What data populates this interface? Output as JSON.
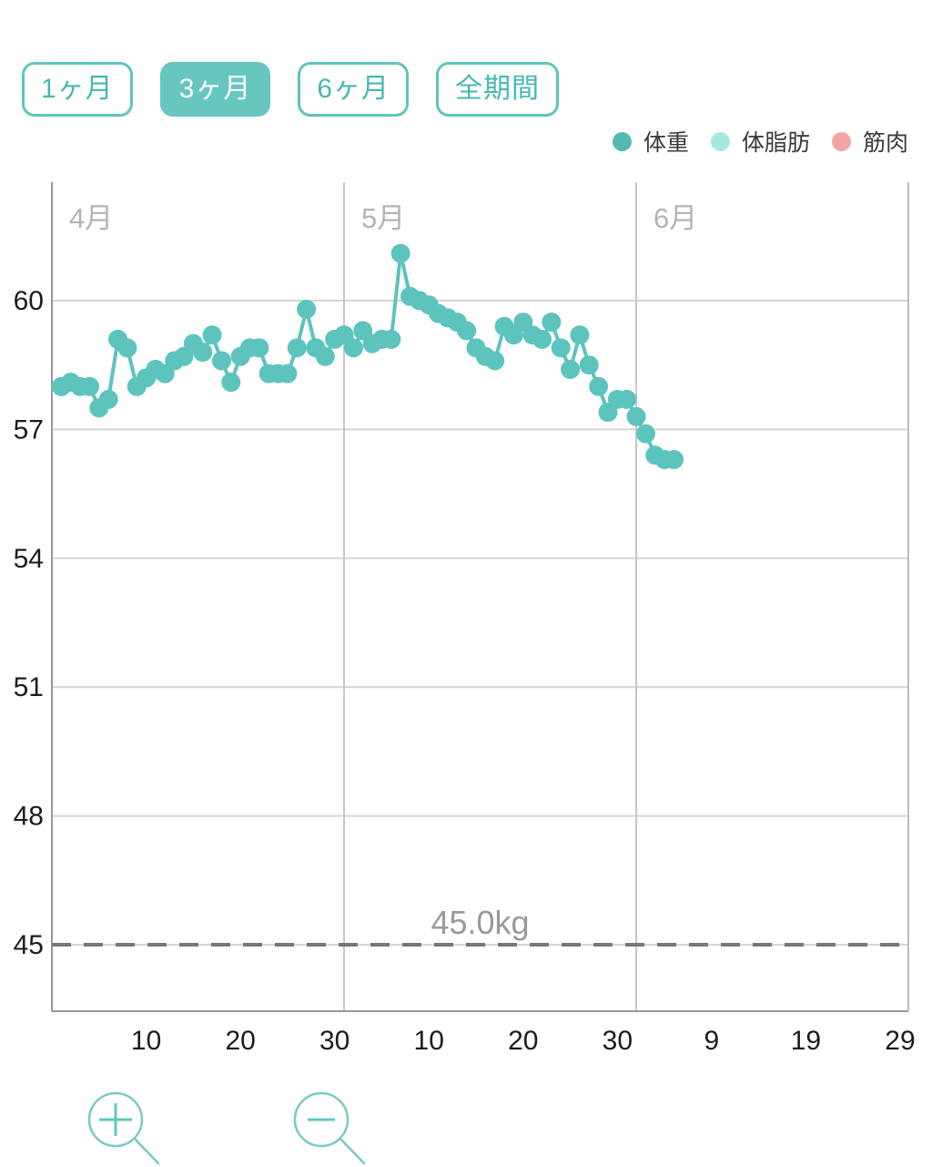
{
  "toolbar": {
    "period_buttons": [
      {
        "label": "1ヶ月",
        "active": false
      },
      {
        "label": "3ヶ月",
        "active": true
      },
      {
        "label": "6ヶ月",
        "active": false
      },
      {
        "label": "全期間",
        "active": false
      }
    ]
  },
  "legend": {
    "items": [
      {
        "label": "体重",
        "color": "#52bab0"
      },
      {
        "label": "体脂肪",
        "color": "#a9e6df"
      },
      {
        "label": "筋肉",
        "color": "#f2a5a3"
      }
    ]
  },
  "chart_data": {
    "type": "line",
    "title": "",
    "grid": true,
    "legend_position": "top-right",
    "y_axis": {
      "unit": "kg",
      "ticks": [
        60,
        57,
        54,
        51,
        48,
        45
      ],
      "range_shown": [
        43.4,
        62.8
      ]
    },
    "x_axis": {
      "month_labels": [
        {
          "label": "4月",
          "day_index": 1
        },
        {
          "label": "5月",
          "day_index": 31
        },
        {
          "label": "6月",
          "day_index": 62
        }
      ],
      "ticks": [
        {
          "label": "10",
          "day_index": 10
        },
        {
          "label": "20",
          "day_index": 20
        },
        {
          "label": "30",
          "day_index": 30
        },
        {
          "label": "10",
          "day_index": 40
        },
        {
          "label": "20",
          "day_index": 50
        },
        {
          "label": "30",
          "day_index": 60
        },
        {
          "label": "9",
          "day_index": 70
        },
        {
          "label": "19",
          "day_index": 80
        },
        {
          "label": "29",
          "day_index": 90
        }
      ]
    },
    "target_line": {
      "value": 45.0,
      "label": "45.0kg",
      "color": "#77777a"
    },
    "series": [
      {
        "name": "体重",
        "unit": "kg",
        "color": "#5cc4bc",
        "points": [
          {
            "date": "4/1",
            "value": 58.0
          },
          {
            "date": "4/2",
            "value": 58.1
          },
          {
            "date": "4/3",
            "value": 58.0
          },
          {
            "date": "4/4",
            "value": 58.0
          },
          {
            "date": "4/5",
            "value": 57.5
          },
          {
            "date": "4/6",
            "value": 57.7
          },
          {
            "date": "4/7",
            "value": 59.1
          },
          {
            "date": "4/8",
            "value": 58.9
          },
          {
            "date": "4/9",
            "value": 58.0
          },
          {
            "date": "4/10",
            "value": 58.2
          },
          {
            "date": "4/11",
            "value": 58.4
          },
          {
            "date": "4/12",
            "value": 58.3
          },
          {
            "date": "4/13",
            "value": 58.6
          },
          {
            "date": "4/14",
            "value": 58.7
          },
          {
            "date": "4/15",
            "value": 59.0
          },
          {
            "date": "4/16",
            "value": 58.8
          },
          {
            "date": "4/17",
            "value": 59.2
          },
          {
            "date": "4/18",
            "value": 58.6
          },
          {
            "date": "4/19",
            "value": 58.1
          },
          {
            "date": "4/20",
            "value": 58.7
          },
          {
            "date": "4/21",
            "value": 58.9
          },
          {
            "date": "4/22",
            "value": 58.9
          },
          {
            "date": "4/23",
            "value": 58.3
          },
          {
            "date": "4/24",
            "value": 58.3
          },
          {
            "date": "4/25",
            "value": 58.3
          },
          {
            "date": "4/26",
            "value": 58.9
          },
          {
            "date": "4/27",
            "value": 59.8
          },
          {
            "date": "4/28",
            "value": 58.9
          },
          {
            "date": "4/29",
            "value": 58.7
          },
          {
            "date": "4/30",
            "value": 59.1
          },
          {
            "date": "5/1",
            "value": 59.2
          },
          {
            "date": "5/2",
            "value": 58.9
          },
          {
            "date": "5/3",
            "value": 59.3
          },
          {
            "date": "5/4",
            "value": 59.0
          },
          {
            "date": "5/5",
            "value": 59.1
          },
          {
            "date": "5/6",
            "value": 59.1
          },
          {
            "date": "5/7",
            "value": 61.1
          },
          {
            "date": "5/8",
            "value": 60.1
          },
          {
            "date": "5/9",
            "value": 60.0
          },
          {
            "date": "5/10",
            "value": 59.9
          },
          {
            "date": "5/11",
            "value": 59.7
          },
          {
            "date": "5/12",
            "value": 59.6
          },
          {
            "date": "5/13",
            "value": 59.5
          },
          {
            "date": "5/14",
            "value": 59.3
          },
          {
            "date": "5/15",
            "value": 58.9
          },
          {
            "date": "5/16",
            "value": 58.7
          },
          {
            "date": "5/17",
            "value": 58.6
          },
          {
            "date": "5/18",
            "value": 59.4
          },
          {
            "date": "5/19",
            "value": 59.2
          },
          {
            "date": "5/20",
            "value": 59.5
          },
          {
            "date": "5/21",
            "value": 59.2
          },
          {
            "date": "5/22",
            "value": 59.1
          },
          {
            "date": "5/23",
            "value": 59.5
          },
          {
            "date": "5/24",
            "value": 58.9
          },
          {
            "date": "5/25",
            "value": 58.4
          },
          {
            "date": "5/26",
            "value": 59.2
          },
          {
            "date": "5/27",
            "value": 58.5
          },
          {
            "date": "5/28",
            "value": 58.0
          },
          {
            "date": "5/29",
            "value": 57.4
          },
          {
            "date": "5/30",
            "value": 57.7
          },
          {
            "date": "5/31",
            "value": 57.7
          },
          {
            "date": "6/1",
            "value": 57.3
          },
          {
            "date": "6/2",
            "value": 56.9
          },
          {
            "date": "6/3",
            "value": 56.4
          },
          {
            "date": "6/4",
            "value": 56.3
          },
          {
            "date": "6/5",
            "value": 56.3
          }
        ]
      }
    ]
  },
  "zoom_controls": {
    "zoom_in_icon": "magnifier-plus",
    "zoom_out_icon": "magnifier-minus"
  }
}
